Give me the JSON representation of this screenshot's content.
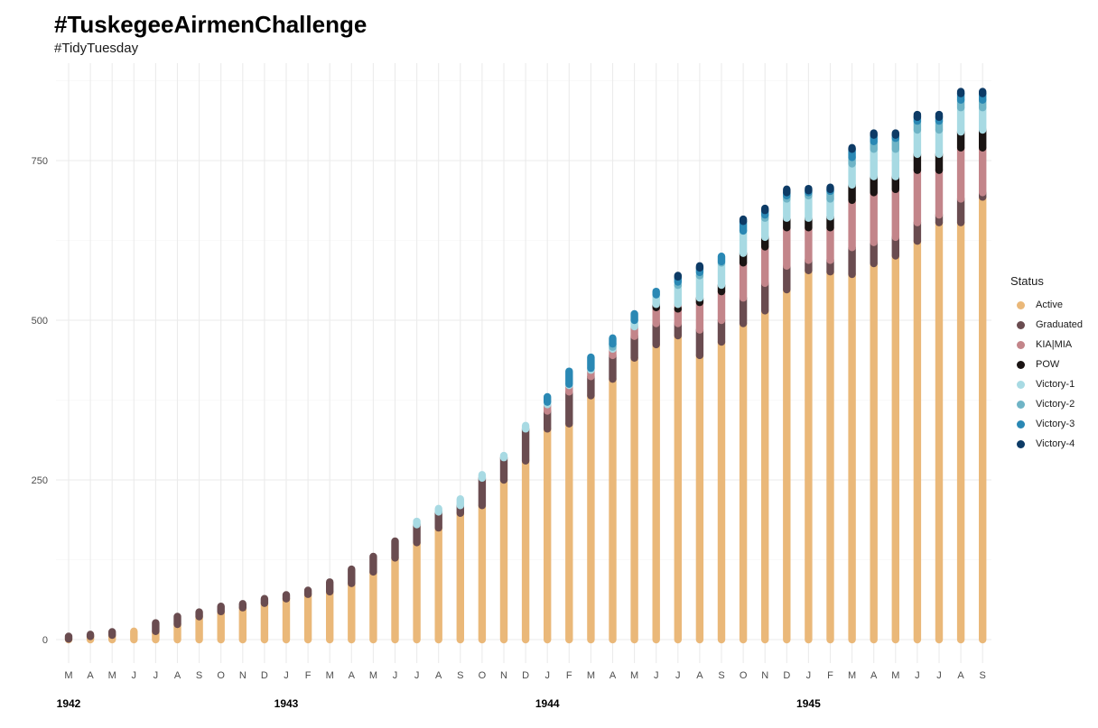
{
  "title": "#TuskegeeAirmenChallenge",
  "subtitle": "#TidyTuesday",
  "chart_data": {
    "type": "scatter",
    "x_labels": [
      "M",
      "A",
      "M",
      "J",
      "J",
      "A",
      "S",
      "O",
      "N",
      "D",
      "J",
      "F",
      "M",
      "A",
      "M",
      "J",
      "J",
      "A",
      "S",
      "O",
      "N",
      "D",
      "J",
      "F",
      "M",
      "A",
      "M",
      "J",
      "J",
      "A",
      "S",
      "O",
      "N",
      "D",
      "J",
      "F",
      "M",
      "A",
      "M",
      "J",
      "J",
      "A",
      "S"
    ],
    "year_labels": [
      {
        "label": "1942",
        "index": 0
      },
      {
        "label": "1943",
        "index": 10
      },
      {
        "label": "1944",
        "index": 22
      },
      {
        "label": "1945",
        "index": 34
      }
    ],
    "y_ticks": [
      0,
      250,
      500,
      750
    ],
    "ylim": [
      -40,
      880
    ],
    "grid": true,
    "legend_title": "Status",
    "legend_position": "right",
    "series": [
      {
        "name": "Active",
        "color": "#EAB879",
        "values": [
          1,
          5,
          7,
          13,
          13,
          24,
          36,
          44,
          50,
          57,
          64,
          71,
          75,
          88,
          106,
          128,
          152,
          175,
          198,
          210,
          250,
          280,
          330,
          338,
          382,
          408,
          441,
          462,
          476,
          445,
          466,
          495,
          515,
          548,
          578,
          576,
          572,
          589,
          601,
          624,
          653,
          653,
          693
        ]
      },
      {
        "name": "Graduated",
        "color": "#6A4C50",
        "values": [
          5,
          8,
          12,
          0,
          26,
          36,
          43,
          52,
          56,
          64,
          70,
          77,
          90,
          110,
          130,
          154,
          180,
          200,
          210,
          253,
          285,
          330,
          358,
          388,
          412,
          445,
          475,
          495,
          495,
          485,
          500,
          535,
          558,
          585,
          594,
          594,
          614,
          622,
          630,
          653,
          665,
          690,
          700
        ]
      },
      {
        "name": "KIA|MIA",
        "color": "#C3858A",
        "values": [
          0,
          0,
          0,
          0,
          0,
          0,
          0,
          0,
          0,
          0,
          0,
          0,
          0,
          0,
          0,
          0,
          0,
          0,
          0,
          0,
          0,
          0,
          368,
          398,
          422,
          455,
          490,
          520,
          525,
          528,
          545,
          590,
          615,
          645,
          645,
          645,
          688,
          700,
          705,
          735,
          735,
          770,
          770
        ]
      },
      {
        "name": "POW",
        "color": "#1A1413",
        "values": [
          0,
          0,
          0,
          0,
          0,
          0,
          0,
          0,
          0,
          0,
          0,
          0,
          0,
          0,
          0,
          0,
          0,
          0,
          0,
          0,
          0,
          0,
          0,
          0,
          0,
          0,
          0,
          525,
          518,
          535,
          555,
          605,
          630,
          660,
          660,
          662,
          712,
          725,
          725,
          760,
          760,
          795,
          798
        ]
      },
      {
        "name": "Victory-1",
        "color": "#A8DAE3",
        "values": [
          0,
          0,
          0,
          0,
          0,
          0,
          0,
          0,
          0,
          0,
          0,
          0,
          0,
          0,
          0,
          0,
          185,
          205,
          220,
          258,
          288,
          335,
          372,
          400,
          425,
          458,
          500,
          540,
          560,
          575,
          592,
          640,
          660,
          690,
          695,
          690,
          745,
          768,
          768,
          798,
          798,
          833,
          833
        ]
      },
      {
        "name": "Victory-2",
        "color": "#6FB4C6",
        "values": [
          0,
          0,
          0,
          0,
          0,
          0,
          0,
          0,
          0,
          0,
          0,
          0,
          0,
          0,
          0,
          0,
          0,
          0,
          0,
          0,
          0,
          0,
          0,
          0,
          0,
          463,
          0,
          0,
          555,
          570,
          590,
          640,
          665,
          695,
          700,
          702,
          755,
          780,
          785,
          812,
          812,
          845,
          845
        ]
      },
      {
        "name": "Victory-3",
        "color": "#2A88B4",
        "values": [
          0,
          0,
          0,
          0,
          0,
          0,
          0,
          0,
          0,
          0,
          0,
          0,
          0,
          0,
          0,
          0,
          0,
          0,
          0,
          0,
          0,
          0,
          380,
          420,
          442,
          472,
          510,
          545,
          568,
          582,
          600,
          655,
          672,
          700,
          703,
          705,
          768,
          790,
          790,
          818,
          818,
          855,
          855
        ]
      },
      {
        "name": "Victory-4",
        "color": "#0D3B66",
        "values": [
          0,
          0,
          0,
          0,
          0,
          0,
          0,
          0,
          0,
          0,
          0,
          0,
          0,
          0,
          0,
          0,
          0,
          0,
          0,
          0,
          0,
          0,
          0,
          0,
          0,
          0,
          0,
          0,
          570,
          585,
          0,
          658,
          675,
          705,
          706,
          708,
          770,
          793,
          793,
          822,
          822,
          858,
          858
        ]
      }
    ]
  }
}
